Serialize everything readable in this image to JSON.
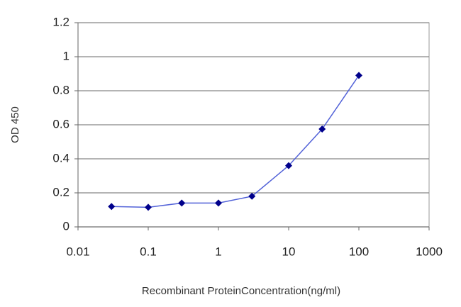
{
  "chart_data": {
    "type": "line",
    "xlabel": "Recombinant ProteinConcentration(ng/ml)",
    "ylabel": "OD 450",
    "x": [
      0.03,
      0.1,
      0.3,
      1,
      3,
      10,
      30,
      100
    ],
    "series": [
      {
        "name": "OD 450",
        "color": "#00008b",
        "line_color": "#5262d8",
        "values": [
          0.12,
          0.115,
          0.14,
          0.14,
          0.18,
          0.36,
          0.575,
          0.89
        ]
      }
    ],
    "xscale": "log",
    "xlim": [
      0.01,
      1000
    ],
    "xticks": [
      0.01,
      0.1,
      1,
      10,
      100,
      1000
    ],
    "ylim": [
      0,
      1.2
    ],
    "yticks": [
      0,
      0.2,
      0.4,
      0.6,
      0.8,
      1,
      1.2
    ],
    "grid": true
  }
}
